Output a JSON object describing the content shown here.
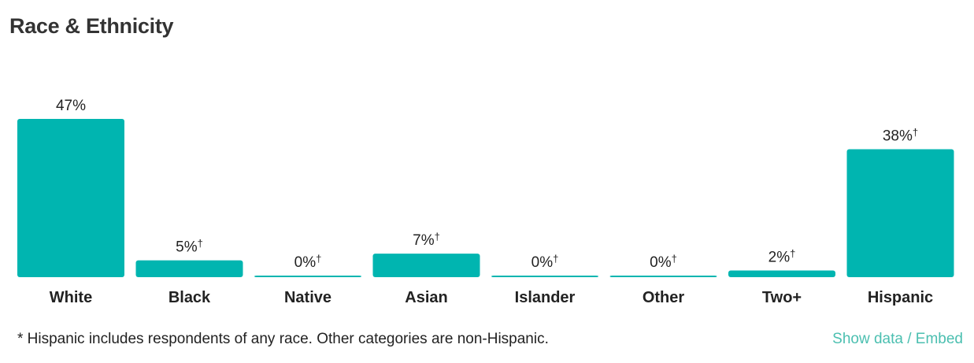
{
  "title": "Race & Ethnicity",
  "chart_data": {
    "type": "bar",
    "categories": [
      "White",
      "Black",
      "Native",
      "Asian",
      "Islander",
      "Other",
      "Two+",
      "Hispanic"
    ],
    "values": [
      47,
      5,
      0,
      7,
      0,
      0,
      2,
      38
    ],
    "value_labels": [
      "47%",
      "5%",
      "0%",
      "7%",
      "0%",
      "0%",
      "2%",
      "38%"
    ],
    "dagger": [
      false,
      true,
      true,
      true,
      true,
      true,
      true,
      true
    ],
    "dagger_symbol": "†",
    "bar_color": "#00b5b0",
    "ylim": [
      0,
      47
    ]
  },
  "footnote": "* Hispanic includes respondents of any race. Other categories are non-Hispanic.",
  "links": {
    "show_data": "Show data",
    "separator": " / ",
    "embed": "Embed"
  },
  "colors": {
    "accent": "#00b5b0",
    "link": "#4bbfb0"
  }
}
